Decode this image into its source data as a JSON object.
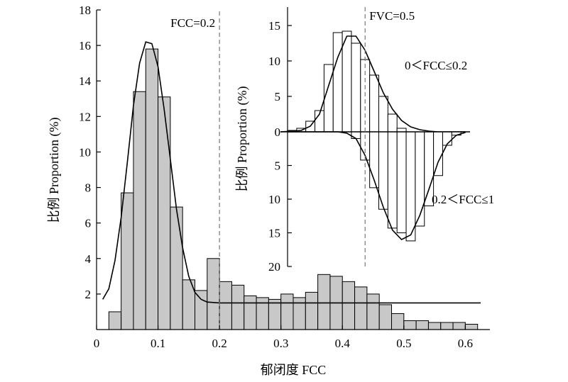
{
  "colors": {
    "bar_fill": "#c8c8c8",
    "bar_stroke": "#000000",
    "curve": "#000000",
    "refline": "#777777",
    "inset_bar_fill": "#ffffff"
  },
  "chart_data": [
    {
      "type": "bar",
      "xlabel": "郁闭度 FCC",
      "ylabel": "比例 Proportion (%)",
      "xlim": [
        0,
        0.64
      ],
      "ylim": [
        0,
        18
      ],
      "xticks": [
        "0",
        "0.1",
        "0.2",
        "0.3",
        "0.4",
        "0.5",
        "0.6"
      ],
      "xtick_values": [
        0,
        0.1,
        0.2,
        0.3,
        0.4,
        0.5,
        0.6
      ],
      "yticks": [
        "2",
        "4",
        "6",
        "8",
        "10",
        "12",
        "14",
        "16",
        "18"
      ],
      "ytick_values": [
        2,
        4,
        6,
        8,
        10,
        12,
        14,
        16,
        18
      ],
      "bin_width": 0.02,
      "bin_starts": [
        0.02,
        0.04,
        0.06,
        0.08,
        0.1,
        0.12,
        0.14,
        0.16,
        0.18,
        0.2,
        0.22,
        0.24,
        0.26,
        0.28,
        0.3,
        0.32,
        0.34,
        0.36,
        0.38,
        0.4,
        0.42,
        0.44,
        0.46,
        0.48,
        0.5,
        0.52,
        0.54,
        0.56,
        0.58,
        0.6
      ],
      "values": [
        1.0,
        7.7,
        13.4,
        15.8,
        13.1,
        6.9,
        2.8,
        2.2,
        4.0,
        2.7,
        2.5,
        1.9,
        1.8,
        1.7,
        2.0,
        1.8,
        2.1,
        3.1,
        3.0,
        2.7,
        2.4,
        2.0,
        1.4,
        0.9,
        0.5,
        0.5,
        0.4,
        0.4,
        0.4,
        0.3
      ],
      "fit_curve": {
        "x": [
          0.01,
          0.02,
          0.03,
          0.04,
          0.05,
          0.06,
          0.07,
          0.08,
          0.09,
          0.1,
          0.11,
          0.12,
          0.13,
          0.14,
          0.15,
          0.16,
          0.17,
          0.18,
          0.2,
          0.25,
          0.3,
          0.35,
          0.4,
          0.45,
          0.5,
          0.55,
          0.6,
          0.625
        ],
        "y": [
          1.7,
          2.3,
          3.9,
          6.3,
          9.4,
          12.6,
          15.0,
          16.2,
          16.1,
          14.8,
          12.4,
          9.6,
          6.8,
          4.6,
          3.0,
          2.1,
          1.7,
          1.55,
          1.5,
          1.5,
          1.5,
          1.5,
          1.5,
          1.5,
          1.5,
          1.5,
          1.5,
          1.5
        ]
      },
      "reference_line": {
        "x": 0.2,
        "label": "FCC=0.2"
      }
    },
    {
      "type": "bar",
      "ylabel": "比例 Proportion (%)",
      "ylim_up": [
        0,
        18
      ],
      "ylim_down": [
        0,
        20
      ],
      "yticks_up": [
        "0",
        "5",
        "10",
        "15"
      ],
      "ytick_values_up": [
        0,
        5,
        10,
        15
      ],
      "yticks_down": [
        "5",
        "10",
        "15",
        "20"
      ],
      "ytick_values_down": [
        5,
        10,
        15,
        20
      ],
      "bins": 20,
      "series": [
        {
          "name": "0＜FCC≤0.2",
          "direction": "up",
          "values": [
            0.2,
            0.5,
            1.5,
            3.0,
            9.5,
            14.0,
            14.2,
            12.5,
            10.2,
            8.0,
            5.0,
            2.5,
            0.5,
            -0.3,
            -0.5,
            -0.8,
            -0.3,
            0.0,
            0.0,
            0.0
          ],
          "fit_curve": [
            0.1,
            0.2,
            0.8,
            2.5,
            6.5,
            10.5,
            13.5,
            13.5,
            11.5,
            8.5,
            5.5,
            3.2,
            1.6,
            0.7,
            0.3,
            0.1,
            0.0,
            0.0,
            0.0,
            0.0
          ]
        },
        {
          "name": "0.2＜FCC≤1",
          "direction": "down",
          "values": [
            0.0,
            0.0,
            0.0,
            0.0,
            0.0,
            0.0,
            0.0,
            1.0,
            4.2,
            8.3,
            11.5,
            14.3,
            15.0,
            16.2,
            14.0,
            11.0,
            6.5,
            2.0,
            0.5,
            0.0
          ],
          "fit_curve": [
            0.0,
            0.0,
            0.0,
            0.0,
            0.0,
            0.0,
            0.2,
            1.0,
            3.5,
            7.2,
            11.2,
            14.6,
            16.0,
            15.3,
            12.4,
            8.5,
            4.5,
            1.8,
            0.5,
            0.1
          ]
        }
      ],
      "reference_line": {
        "bin": 8.5,
        "label": "FVC=0.5"
      }
    }
  ]
}
